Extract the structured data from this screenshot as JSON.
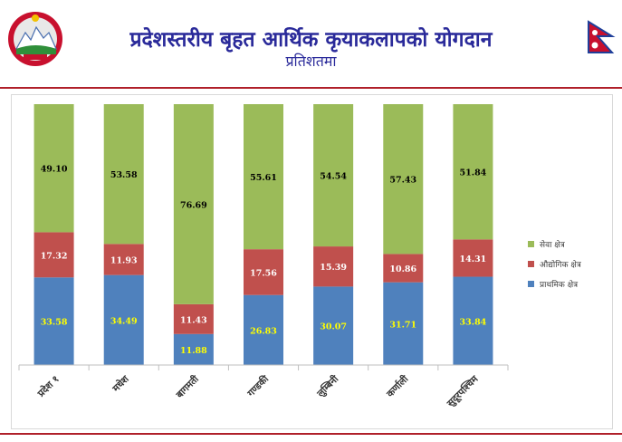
{
  "header": {
    "title": "प्रदेशस्तरीय बृहत आर्थिक कृयाकलापको योगदान",
    "subtitle": "प्रतिशतमा"
  },
  "colors": {
    "service": "#9bbb59",
    "industry": "#c0504d",
    "primary": "#4f81bd",
    "title": "#2a2a9a",
    "rule": "#b0202a"
  },
  "chart_data": {
    "type": "bar",
    "stacked": true,
    "categories": [
      "प्रदेश १",
      "मधेश",
      "बागमती",
      "गण्डकी",
      "लुम्बिनी",
      "कर्णाली",
      "सुदूरपश्चिम"
    ],
    "series": [
      {
        "name": "प्राथमिक क्षेत्र",
        "values": [
          33.58,
          34.49,
          11.88,
          26.83,
          30.07,
          31.71,
          33.84
        ],
        "labels": [
          "33.58",
          "34.49",
          "11.88",
          "26.83",
          "30.07",
          "31.71",
          "33.84"
        ]
      },
      {
        "name": "औद्योगिक क्षेत्र",
        "values": [
          17.32,
          11.93,
          11.43,
          17.56,
          15.39,
          10.86,
          14.31
        ],
        "labels": [
          "17.32",
          "11.93",
          "11.43",
          "17.56",
          "15.39",
          "10.86",
          "14.31"
        ]
      },
      {
        "name": "सेवा क्षेत्र",
        "values": [
          49.1,
          53.58,
          76.69,
          55.61,
          54.54,
          57.43,
          51.84
        ],
        "labels": [
          "49.10",
          "53.58",
          "76.69",
          "55.61",
          "54.54",
          "57.43",
          "51.84"
        ]
      }
    ],
    "ylim": [
      0,
      100
    ],
    "grid": false,
    "legend": "right"
  }
}
